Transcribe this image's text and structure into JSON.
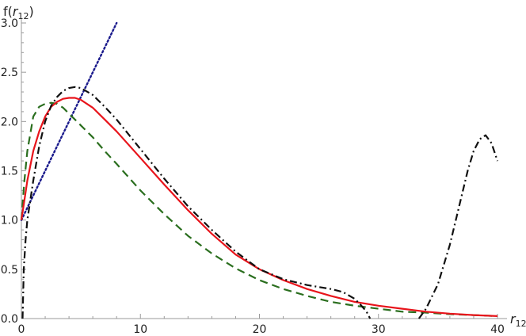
{
  "chart_data": {
    "type": "line",
    "title": "",
    "xlabel": {
      "base": "r",
      "subscript": "12"
    },
    "ylabel": {
      "prefix": "f(",
      "base": "r",
      "subscript": "12",
      "suffix": ")"
    },
    "xlim": [
      0,
      40
    ],
    "ylim": [
      0,
      3.0
    ],
    "x_ticks": [
      0,
      10,
      20,
      30,
      40
    ],
    "x_tick_labels": [
      "0",
      "10",
      "20",
      "30",
      "40"
    ],
    "y_ticks": [
      0,
      0.5,
      1.0,
      1.5,
      2.0,
      2.5,
      3.0
    ],
    "y_tick_labels": [
      "0.0",
      "0.5",
      "1.0",
      "1.5",
      "2.0",
      "2.5",
      "3.0"
    ],
    "grid": false,
    "legend": "none",
    "series": [
      {
        "style": "dotted",
        "color": "#1a1a8c",
        "x": [
          0,
          8
        ],
        "y": [
          1.0,
          3.0
        ]
      },
      {
        "style": "dashed",
        "color": "#2a6e1e",
        "x": [
          0,
          0.25,
          0.5,
          1,
          1.5,
          2,
          2.5,
          3,
          3.5,
          4,
          5,
          6,
          7,
          8,
          10,
          12,
          14,
          16,
          18,
          20,
          22,
          24,
          26,
          28,
          30,
          32,
          34,
          36,
          38,
          40
        ],
        "y": [
          1.0,
          1.4,
          1.7,
          2.05,
          2.15,
          2.18,
          2.19,
          2.18,
          2.14,
          2.08,
          1.96,
          1.84,
          1.7,
          1.57,
          1.3,
          1.06,
          0.84,
          0.66,
          0.51,
          0.39,
          0.3,
          0.23,
          0.17,
          0.13,
          0.1,
          0.07,
          0.06,
          0.045,
          0.035,
          0.025
        ]
      },
      {
        "style": "solid",
        "color": "#e8141b",
        "x": [
          0,
          0.25,
          0.5,
          1,
          1.5,
          2,
          2.5,
          3,
          3.5,
          4,
          4.5,
          5,
          6,
          7,
          8,
          10,
          12,
          14,
          16,
          18,
          20,
          22,
          24,
          26,
          28,
          30,
          32,
          34,
          36,
          38,
          40
        ],
        "y": [
          1.0,
          1.2,
          1.4,
          1.7,
          1.9,
          2.05,
          2.15,
          2.2,
          2.23,
          2.24,
          2.24,
          2.22,
          2.14,
          2.02,
          1.9,
          1.63,
          1.36,
          1.1,
          0.86,
          0.65,
          0.5,
          0.39,
          0.3,
          0.23,
          0.17,
          0.13,
          0.1,
          0.07,
          0.05,
          0.035,
          0.025
        ]
      },
      {
        "style": "dashdot",
        "color": "#111111",
        "segments": [
          {
            "x": [
              0.1,
              0.2,
              0.35,
              0.5,
              1,
              1.5,
              2,
              2.5,
              3,
              3.5,
              4,
              4.5,
              5,
              6,
              7,
              8,
              10,
              12,
              14,
              16,
              18,
              20,
              22,
              24,
              25,
              26,
              27,
              28,
              28.5,
              29,
              29.3
            ],
            "y": [
              0.0,
              0.5,
              0.8,
              1.0,
              1.4,
              1.75,
              2.0,
              2.16,
              2.25,
              2.31,
              2.34,
              2.35,
              2.34,
              2.27,
              2.15,
              2.02,
              1.72,
              1.42,
              1.14,
              0.9,
              0.68,
              0.5,
              0.4,
              0.34,
              0.32,
              0.3,
              0.27,
              0.2,
              0.14,
              0.07,
              0.0
            ]
          },
          {
            "x": [
              33.4,
              34,
              35,
              36,
              37,
              37.5,
              38,
              38.5,
              39,
              39.5,
              40
            ],
            "y": [
              0.0,
              0.1,
              0.35,
              0.75,
              1.25,
              1.5,
              1.7,
              1.82,
              1.86,
              1.78,
              1.6
            ]
          }
        ]
      }
    ]
  }
}
